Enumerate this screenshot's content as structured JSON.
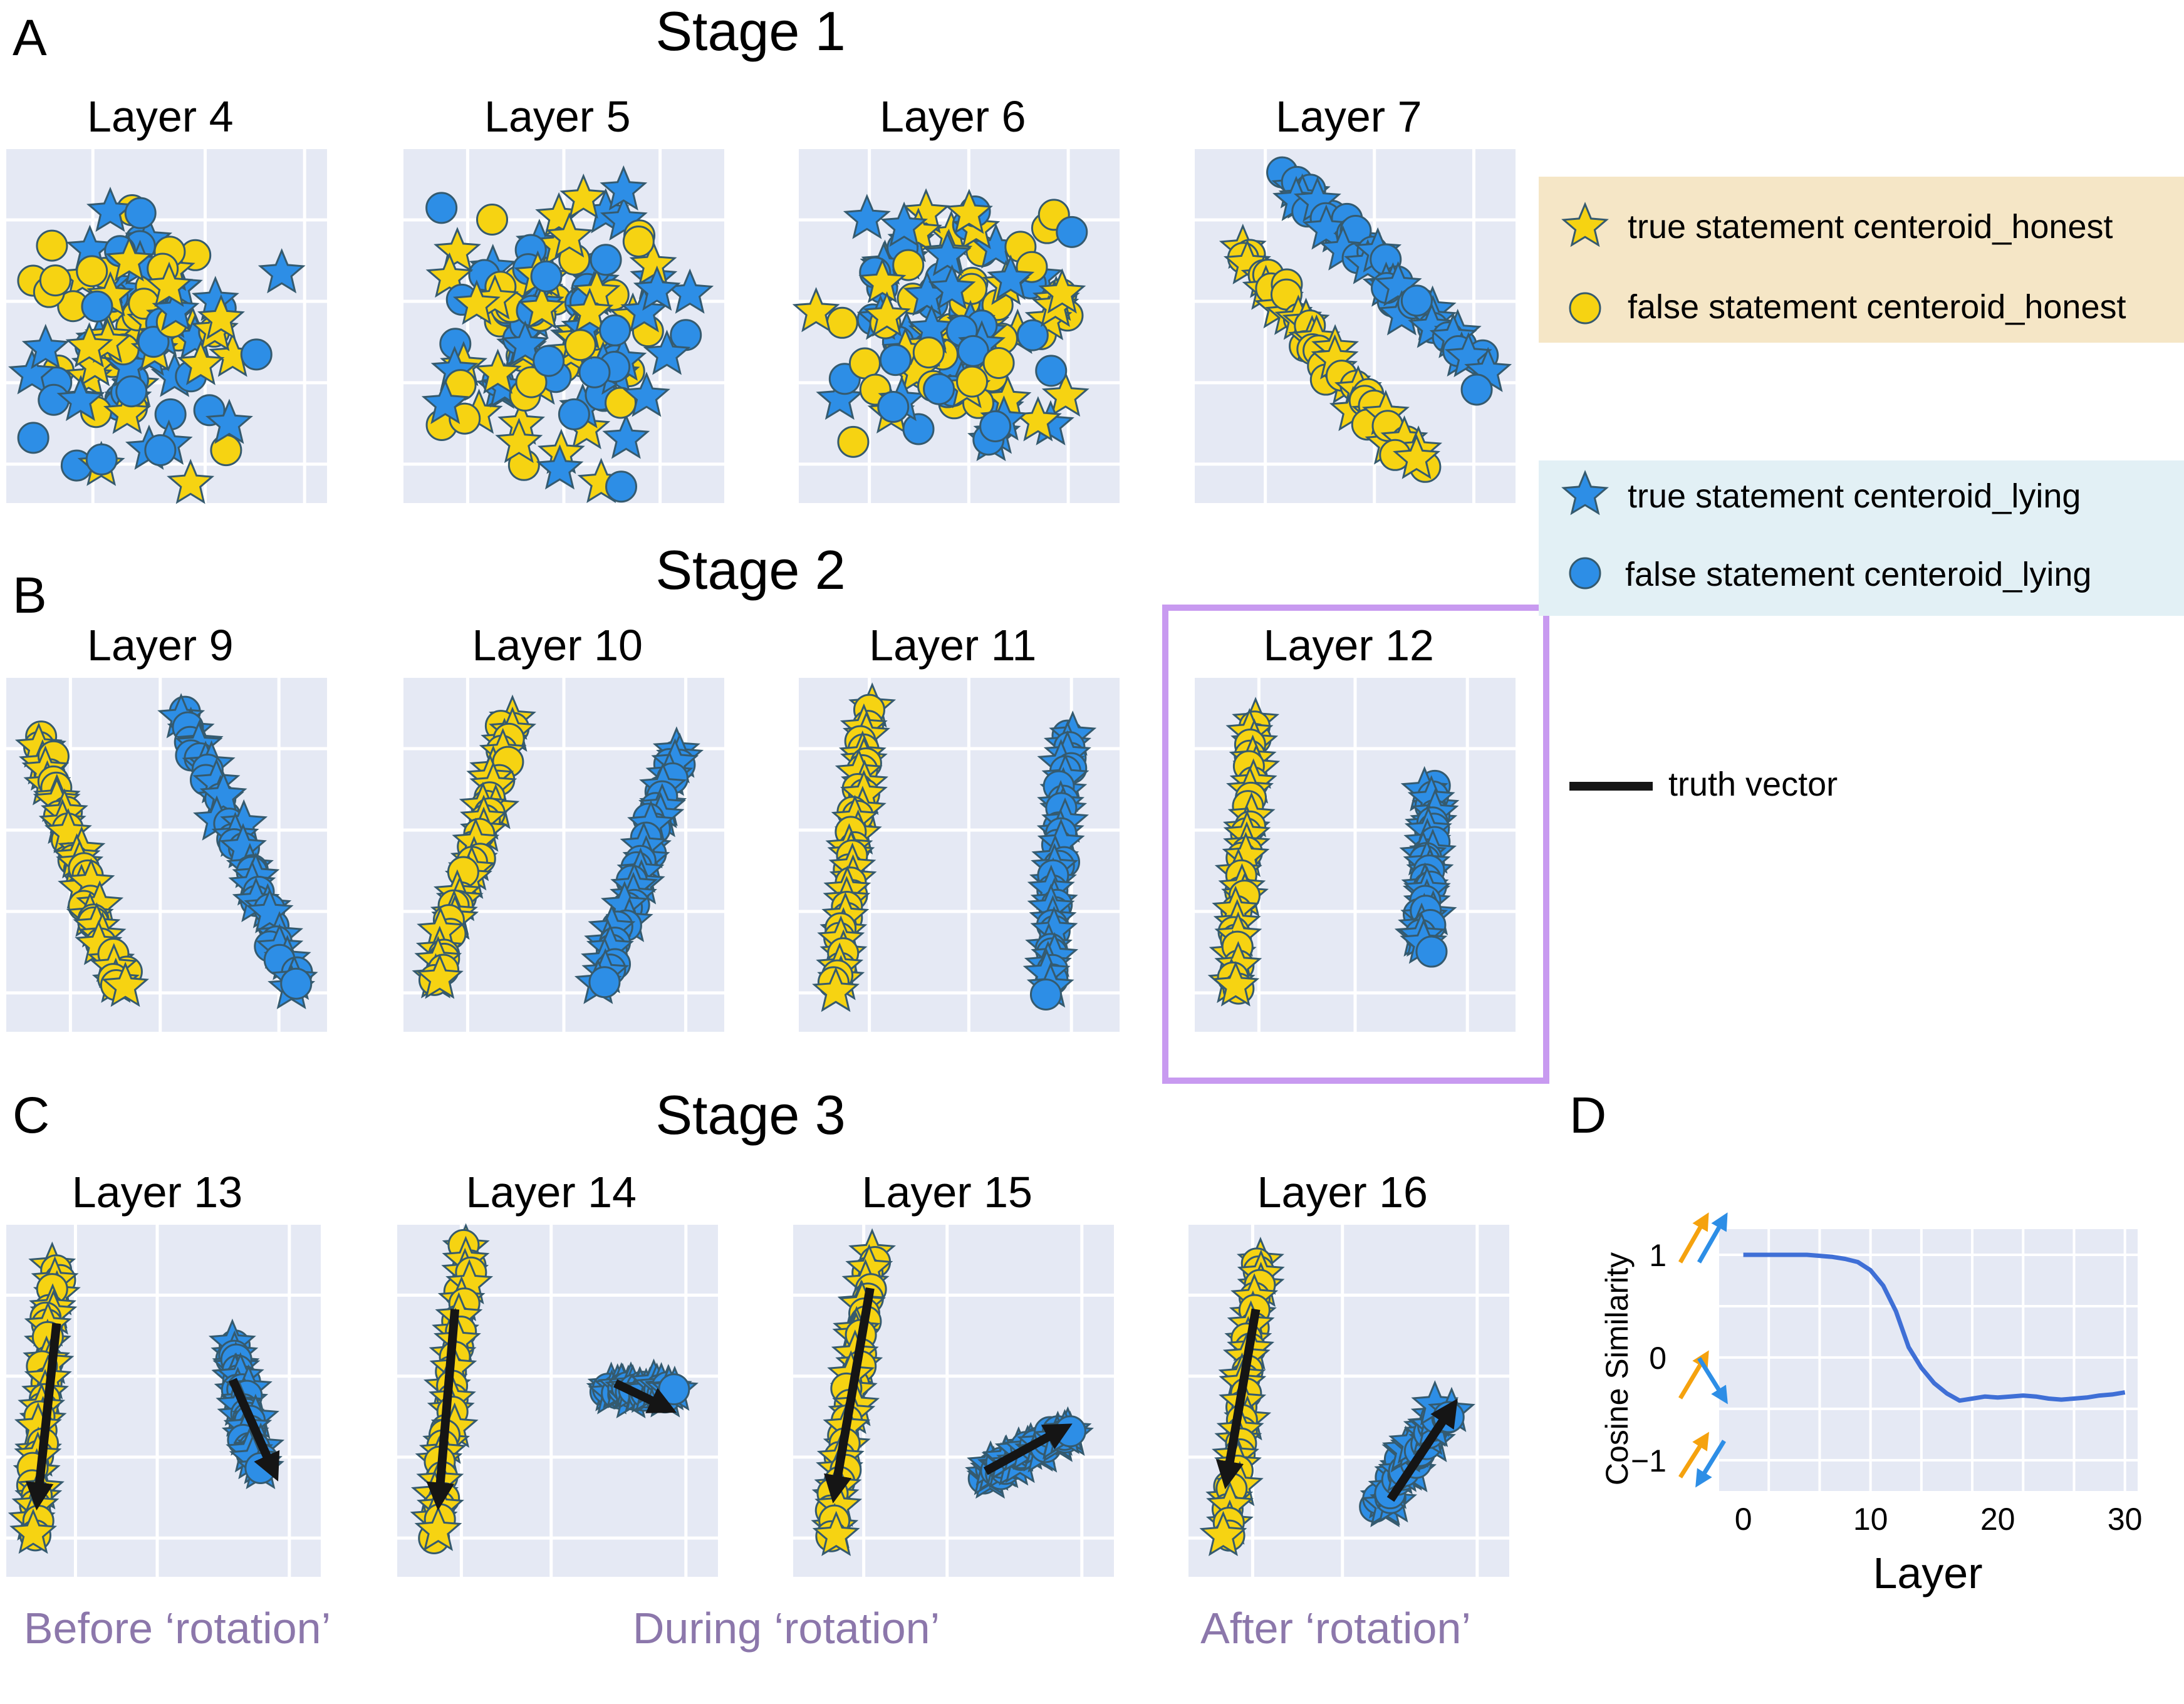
{
  "panel_letters": {
    "a": "A",
    "b": "B",
    "c": "C",
    "d": "D"
  },
  "stages": {
    "s1": "Stage 1",
    "s2": "Stage 2",
    "s3": "Stage 3"
  },
  "rotation_labels": {
    "before": "Before ‘rotation’",
    "during": "During ‘rotation’",
    "after": "After ‘rotation’"
  },
  "legend": {
    "true_honest": "true statement centeroid_honest",
    "false_honest": "false statement centeroid_honest",
    "true_lying": "true statement centeroid_lying",
    "false_lying": "false statement centeroid_lying",
    "truth_vector": "truth vector"
  },
  "colors": {
    "honest": "#f6d312",
    "lying": "#2d8ee6",
    "marker_edge": "#355a6e",
    "plot_bg": "#e5e9f4",
    "grid": "#ffffff",
    "honest_legend_bg": "#f5e6c6",
    "lying_legend_bg": "#e2f0f5",
    "highlight_box": "#c89af0",
    "rotation_text": "#8c77ab",
    "cosine_line": "#3f6fd6",
    "orange_arrow": "#f5a20e",
    "blue_arrow": "#2d8ee6"
  },
  "chart_data": [
    {
      "type": "scatter",
      "title": "Layer 4",
      "series": [
        {
          "name": "true statement centeroid_honest"
        },
        {
          "name": "false statement centeroid_honest"
        },
        {
          "name": "true statement centeroid_lying"
        },
        {
          "name": "false statement centeroid_lying"
        }
      ]
    },
    {
      "type": "scatter",
      "title": "Layer 5",
      "series": [
        {
          "name": "true statement centeroid_honest"
        },
        {
          "name": "false statement centeroid_honest"
        },
        {
          "name": "true statement centeroid_lying"
        },
        {
          "name": "false statement centeroid_lying"
        }
      ]
    },
    {
      "type": "scatter",
      "title": "Layer 6",
      "series": [
        {
          "name": "true statement centeroid_honest"
        },
        {
          "name": "false statement centeroid_honest"
        },
        {
          "name": "true statement centeroid_lying"
        },
        {
          "name": "false statement centeroid_lying"
        }
      ]
    },
    {
      "type": "scatter",
      "title": "Layer 7",
      "series": [
        {
          "name": "true statement centeroid_honest"
        },
        {
          "name": "false statement centeroid_honest"
        },
        {
          "name": "true statement centeroid_lying"
        },
        {
          "name": "false statement centeroid_lying"
        }
      ]
    },
    {
      "type": "scatter",
      "title": "Layer 9",
      "series": [
        {
          "name": "true statement centeroid_honest"
        },
        {
          "name": "false statement centeroid_honest"
        },
        {
          "name": "true statement centeroid_lying"
        },
        {
          "name": "false statement centeroid_lying"
        }
      ]
    },
    {
      "type": "scatter",
      "title": "Layer 10",
      "series": [
        {
          "name": "true statement centeroid_honest"
        },
        {
          "name": "false statement centeroid_honest"
        },
        {
          "name": "true statement centeroid_lying"
        },
        {
          "name": "false statement centeroid_lying"
        }
      ]
    },
    {
      "type": "scatter",
      "title": "Layer 11",
      "series": [
        {
          "name": "true statement centeroid_honest"
        },
        {
          "name": "false statement centeroid_honest"
        },
        {
          "name": "true statement centeroid_lying"
        },
        {
          "name": "false statement centeroid_lying"
        }
      ]
    },
    {
      "type": "scatter",
      "title": "Layer 12",
      "highlighted": true,
      "series": [
        {
          "name": "true statement centeroid_honest"
        },
        {
          "name": "false statement centeroid_honest"
        },
        {
          "name": "true statement centeroid_lying"
        },
        {
          "name": "false statement centeroid_lying"
        }
      ]
    },
    {
      "type": "scatter",
      "title": "Layer 13",
      "series": [
        {
          "name": "true statement centeroid_honest"
        },
        {
          "name": "false statement centeroid_honest"
        },
        {
          "name": "true statement centeroid_lying"
        },
        {
          "name": "false statement centeroid_lying"
        },
        {
          "name": "truth vector"
        }
      ]
    },
    {
      "type": "scatter",
      "title": "Layer 14",
      "series": [
        {
          "name": "true statement centeroid_honest"
        },
        {
          "name": "false statement centeroid_honest"
        },
        {
          "name": "true statement centeroid_lying"
        },
        {
          "name": "false statement centeroid_lying"
        },
        {
          "name": "truth vector"
        }
      ]
    },
    {
      "type": "scatter",
      "title": "Layer 15",
      "series": [
        {
          "name": "true statement centeroid_honest"
        },
        {
          "name": "false statement centeroid_honest"
        },
        {
          "name": "true statement centeroid_lying"
        },
        {
          "name": "false statement centeroid_lying"
        },
        {
          "name": "truth vector"
        }
      ]
    },
    {
      "type": "scatter",
      "title": "Layer 16",
      "series": [
        {
          "name": "true statement centeroid_honest"
        },
        {
          "name": "false statement centeroid_honest"
        },
        {
          "name": "true statement centeroid_lying"
        },
        {
          "name": "false statement centeroid_lying"
        },
        {
          "name": "truth vector"
        }
      ]
    },
    {
      "type": "line",
      "xlabel": "Layer",
      "ylabel": "Cosine Similarity",
      "xlim": [
        -2,
        31
      ],
      "ylim": [
        -1.3,
        1.25
      ],
      "xticks": [
        0,
        10,
        20,
        30
      ],
      "yticks": [
        1,
        0,
        -1
      ],
      "grid": true,
      "x": [
        0,
        1,
        2,
        3,
        4,
        5,
        6,
        7,
        8,
        9,
        10,
        11,
        12,
        13,
        14,
        15,
        16,
        17,
        18,
        19,
        20,
        21,
        22,
        23,
        24,
        25,
        26,
        27,
        28,
        29,
        30
      ],
      "values": [
        1.0,
        1.0,
        1.0,
        1.0,
        1.0,
        1.0,
        0.99,
        0.98,
        0.96,
        0.93,
        0.85,
        0.7,
        0.45,
        0.1,
        -0.1,
        -0.25,
        -0.35,
        -0.42,
        -0.4,
        -0.38,
        -0.39,
        -0.38,
        -0.37,
        -0.38,
        -0.4,
        -0.41,
        -0.4,
        -0.39,
        -0.37,
        -0.36,
        -0.34
      ]
    }
  ]
}
